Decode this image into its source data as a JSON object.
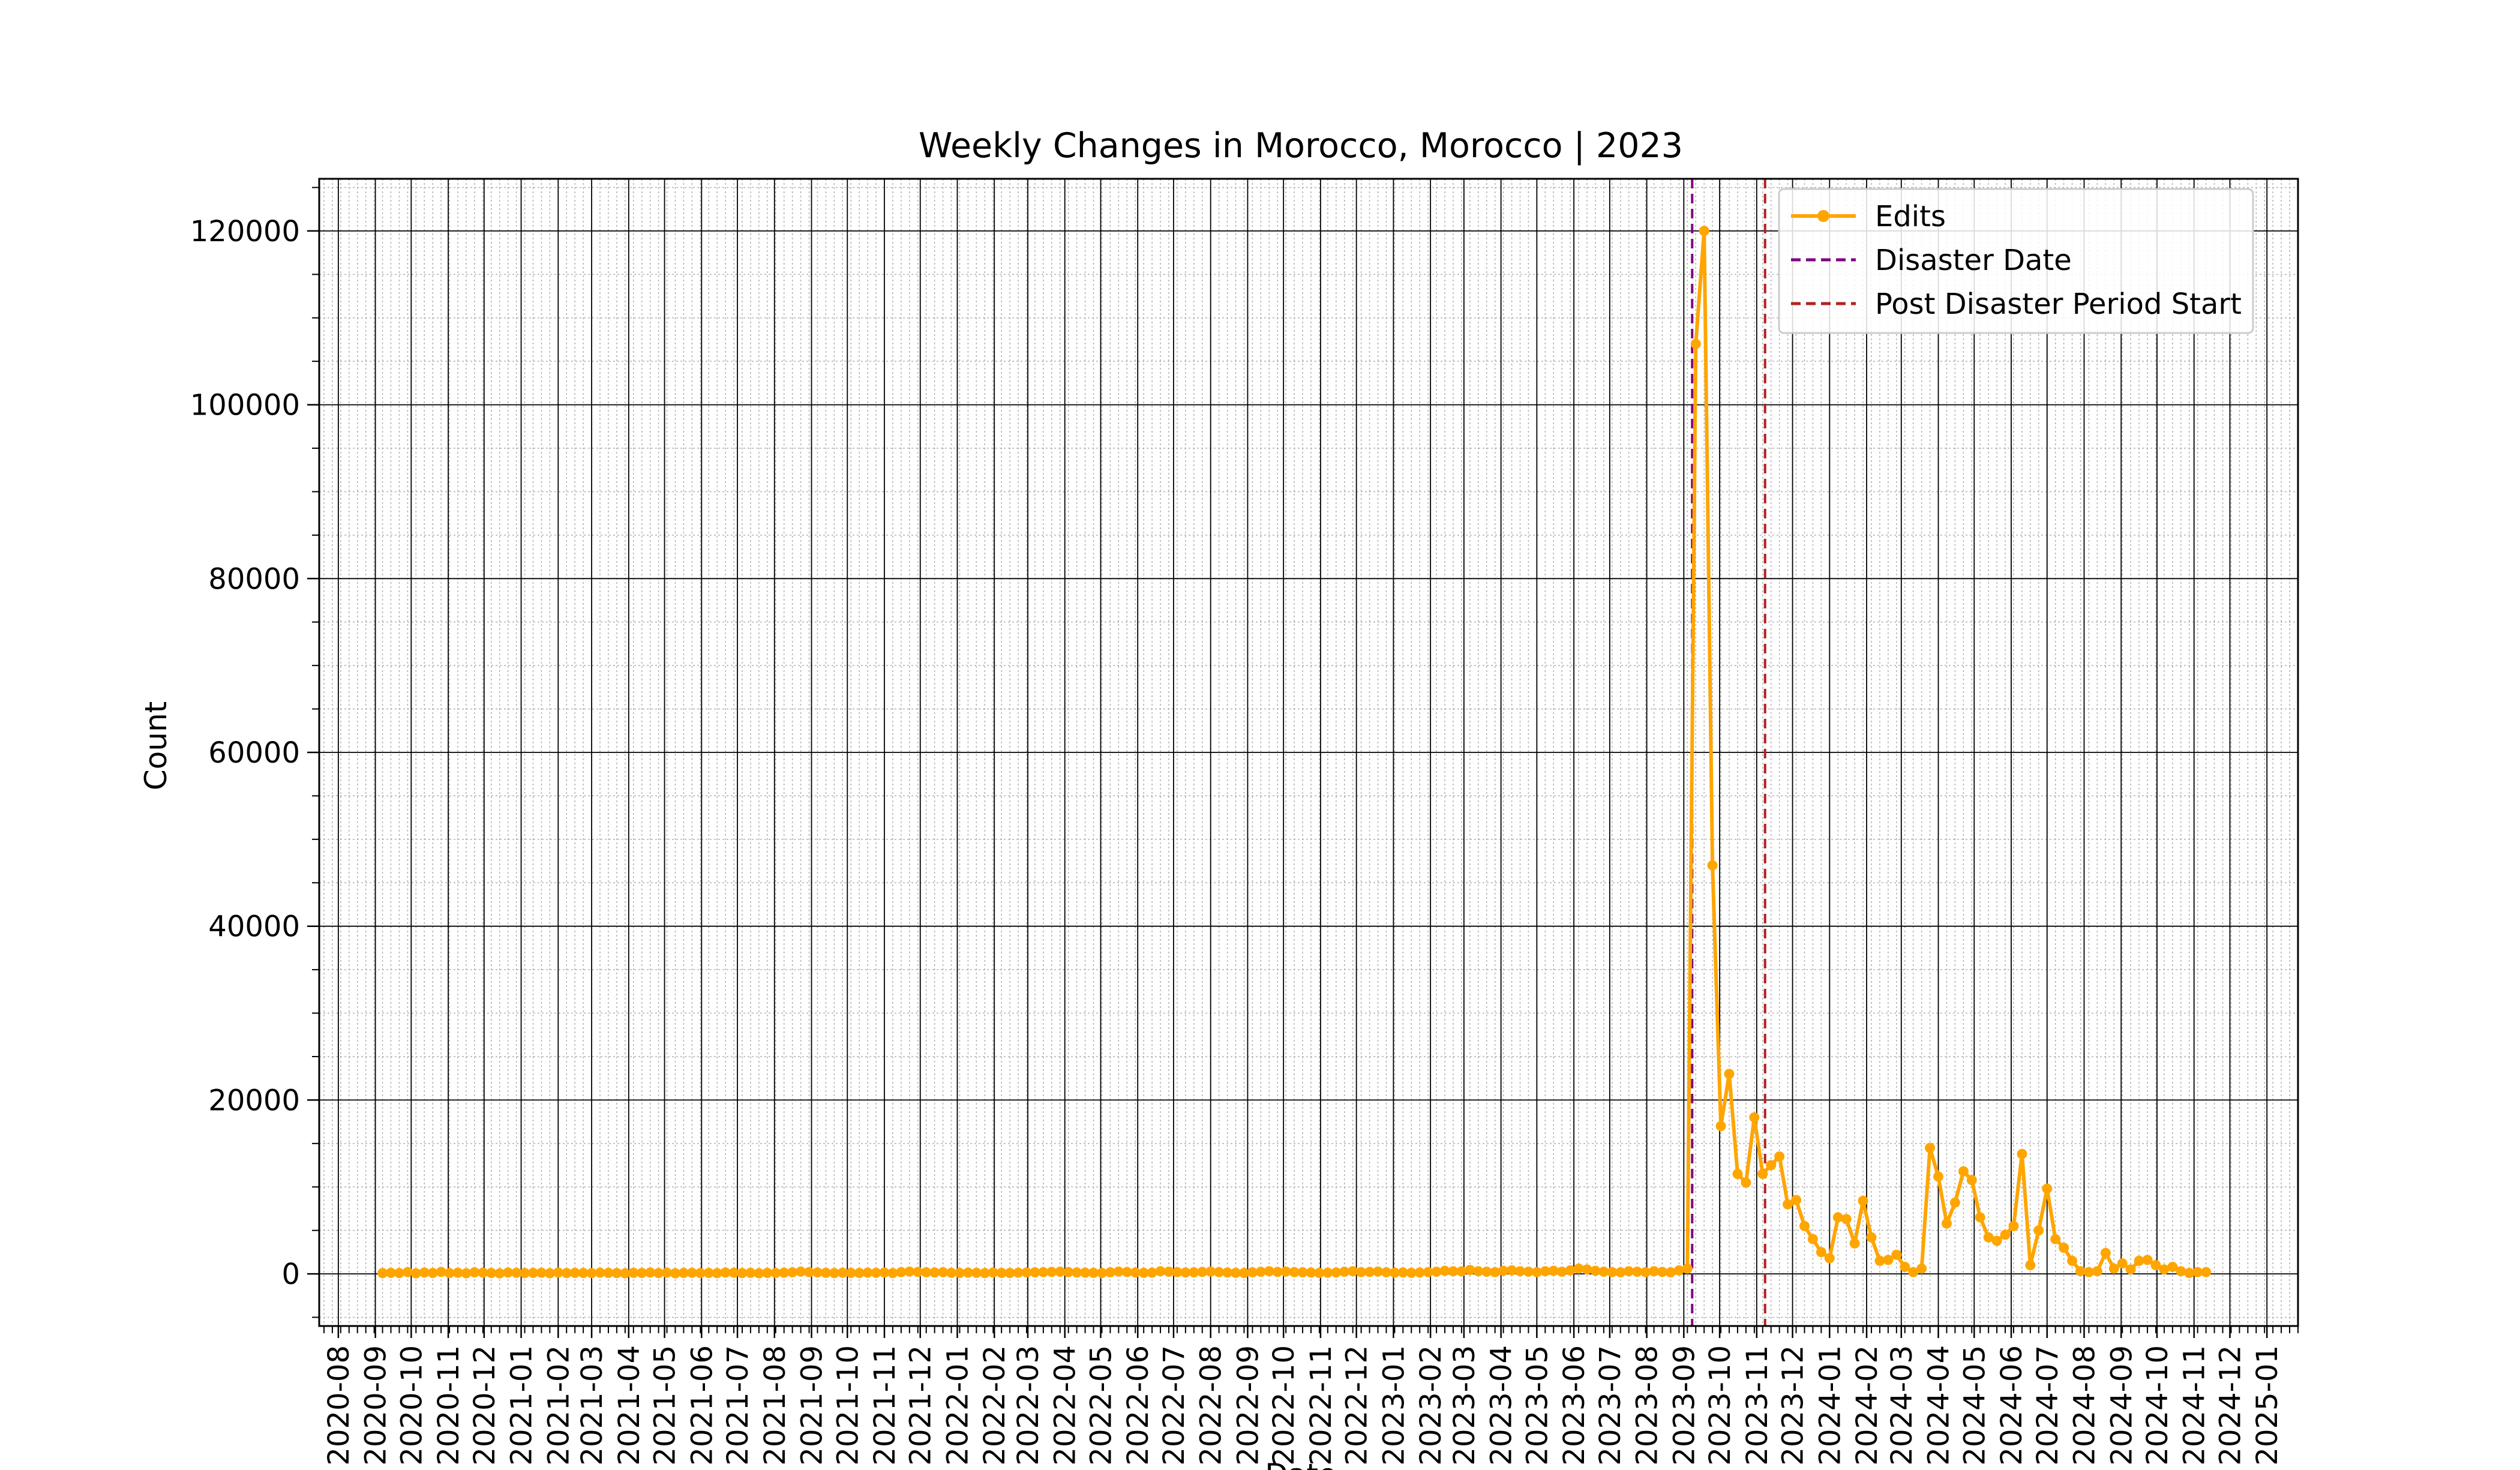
{
  "chart_data": {
    "type": "line",
    "title": "Weekly Changes in Morocco, Morocco | 2023",
    "xlabel": "Date",
    "ylabel": "Count",
    "x_range": [
      "2020-07-16",
      "2025-01-27"
    ],
    "ylim": [
      -6000,
      126000
    ],
    "y_ticks": [
      0,
      20000,
      40000,
      60000,
      80000,
      100000,
      120000
    ],
    "x_ticks": [
      "2020-08",
      "2020-09",
      "2020-10",
      "2020-11",
      "2020-12",
      "2021-01",
      "2021-02",
      "2021-03",
      "2021-04",
      "2021-05",
      "2021-06",
      "2021-07",
      "2021-08",
      "2021-09",
      "2021-10",
      "2021-11",
      "2021-12",
      "2022-01",
      "2022-02",
      "2022-03",
      "2022-04",
      "2022-05",
      "2022-06",
      "2022-07",
      "2022-08",
      "2022-09",
      "2022-10",
      "2022-11",
      "2022-12",
      "2023-01",
      "2023-02",
      "2023-03",
      "2023-04",
      "2023-05",
      "2023-06",
      "2023-07",
      "2023-08",
      "2023-09",
      "2023-10",
      "2023-11",
      "2023-12",
      "2024-01",
      "2024-02",
      "2024-03",
      "2024-04",
      "2024-05",
      "2024-06",
      "2024-07",
      "2024-08",
      "2024-09",
      "2024-10",
      "2024-11",
      "2024-12",
      "2025-01"
    ],
    "grid": true,
    "legend_placement": "top-right",
    "series": [
      {
        "name": "Edits",
        "color": "#FFA500",
        "marker": "circle",
        "baseline_start": "2020-09-07",
        "baseline_end": "2023-09-04",
        "baseline_values": [
          80,
          120,
          90,
          200,
          60,
          150,
          100,
          220,
          90,
          130,
          70,
          180,
          140,
          100,
          60,
          150,
          120,
          90,
          110,
          130,
          70,
          150,
          90,
          120,
          100,
          80,
          140,
          110,
          90,
          60,
          120,
          100,
          150,
          90,
          130,
          70,
          110,
          120,
          90,
          100,
          80,
          150,
          130,
          90,
          120,
          70,
          110,
          100,
          140,
          180,
          260,
          200,
          160,
          120,
          90,
          130,
          110,
          100,
          140,
          120,
          150,
          90,
          200,
          260,
          220,
          180,
          160,
          190,
          120,
          100,
          140,
          120,
          90,
          150,
          110,
          100,
          130,
          160,
          180,
          200,
          220,
          250,
          200,
          160,
          140,
          120,
          100,
          180,
          260,
          210,
          150,
          120,
          140,
          300,
          250,
          200,
          160,
          180,
          220,
          260,
          200,
          150,
          120,
          100,
          180,
          240,
          300,
          220,
          260,
          200,
          180,
          150,
          100,
          130,
          160,
          250,
          300,
          200,
          220,
          260,
          180,
          140,
          160,
          120,
          150,
          200,
          250,
          350,
          300,
          280,
          450,
          300,
          250,
          200,
          350,
          400,
          300,
          250,
          200,
          300,
          350,
          250,
          400,
          600,
          500,
          350,
          250,
          200,
          180,
          300,
          250,
          200,
          300,
          220,
          180,
          400,
          600,
          350,
          200,
          150,
          300
        ],
        "points": [
          {
            "x": "2023-09-11",
            "y": 107000
          },
          {
            "x": "2023-09-18",
            "y": 120000
          },
          {
            "x": "2023-09-25",
            "y": 47000
          },
          {
            "x": "2023-10-02",
            "y": 17000
          },
          {
            "x": "2023-10-09",
            "y": 23000
          },
          {
            "x": "2023-10-16",
            "y": 11500
          },
          {
            "x": "2023-10-23",
            "y": 10500
          },
          {
            "x": "2023-10-30",
            "y": 18000
          },
          {
            "x": "2023-11-06",
            "y": 11500
          },
          {
            "x": "2023-11-13",
            "y": 12500
          },
          {
            "x": "2023-11-20",
            "y": 13500
          },
          {
            "x": "2023-11-27",
            "y": 8000
          },
          {
            "x": "2023-12-04",
            "y": 8500
          },
          {
            "x": "2023-12-11",
            "y": 5500
          },
          {
            "x": "2023-12-18",
            "y": 4000
          },
          {
            "x": "2023-12-25",
            "y": 2500
          },
          {
            "x": "2024-01-01",
            "y": 1800
          },
          {
            "x": "2024-01-08",
            "y": 6500
          },
          {
            "x": "2024-01-15",
            "y": 6300
          },
          {
            "x": "2024-01-22",
            "y": 3500
          },
          {
            "x": "2024-01-29",
            "y": 8400
          },
          {
            "x": "2024-02-05",
            "y": 4200
          },
          {
            "x": "2024-02-12",
            "y": 1500
          },
          {
            "x": "2024-02-19",
            "y": 1600
          },
          {
            "x": "2024-02-26",
            "y": 2200
          },
          {
            "x": "2024-03-04",
            "y": 800
          },
          {
            "x": "2024-03-11",
            "y": 200
          },
          {
            "x": "2024-03-18",
            "y": 600
          },
          {
            "x": "2024-03-25",
            "y": 14500
          },
          {
            "x": "2024-04-01",
            "y": 11200
          },
          {
            "x": "2024-04-08",
            "y": 5800
          },
          {
            "x": "2024-04-15",
            "y": 8200
          },
          {
            "x": "2024-04-22",
            "y": 11800
          },
          {
            "x": "2024-04-29",
            "y": 10800
          },
          {
            "x": "2024-05-06",
            "y": 6500
          },
          {
            "x": "2024-05-13",
            "y": 4200
          },
          {
            "x": "2024-05-20",
            "y": 3800
          },
          {
            "x": "2024-05-27",
            "y": 4500
          },
          {
            "x": "2024-06-03",
            "y": 5500
          },
          {
            "x": "2024-06-10",
            "y": 13800
          },
          {
            "x": "2024-06-17",
            "y": 1000
          },
          {
            "x": "2024-06-24",
            "y": 5000
          },
          {
            "x": "2024-07-01",
            "y": 9800
          },
          {
            "x": "2024-07-08",
            "y": 4000
          },
          {
            "x": "2024-07-15",
            "y": 3000
          },
          {
            "x": "2024-07-22",
            "y": 1500
          },
          {
            "x": "2024-07-29",
            "y": 300
          },
          {
            "x": "2024-08-05",
            "y": 200
          },
          {
            "x": "2024-08-12",
            "y": 300
          },
          {
            "x": "2024-08-19",
            "y": 2400
          },
          {
            "x": "2024-08-26",
            "y": 600
          },
          {
            "x": "2024-09-02",
            "y": 1200
          },
          {
            "x": "2024-09-09",
            "y": 500
          },
          {
            "x": "2024-09-16",
            "y": 1500
          },
          {
            "x": "2024-09-23",
            "y": 1600
          },
          {
            "x": "2024-09-30",
            "y": 1000
          },
          {
            "x": "2024-10-07",
            "y": 500
          },
          {
            "x": "2024-10-14",
            "y": 800
          },
          {
            "x": "2024-10-21",
            "y": 300
          },
          {
            "x": "2024-10-28",
            "y": 100
          },
          {
            "x": "2024-11-04",
            "y": 200
          },
          {
            "x": "2024-11-11",
            "y": 200
          }
        ]
      }
    ],
    "vlines": [
      {
        "name": "Disaster Date",
        "x": "2023-09-08",
        "color": "#800080",
        "style": "dashed"
      },
      {
        "name": "Post Disaster Period Start",
        "x": "2023-11-08",
        "color": "#B22222",
        "style": "dashed"
      }
    ],
    "legend": [
      "Edits",
      "Disaster Date",
      "Post Disaster Period Start"
    ]
  }
}
